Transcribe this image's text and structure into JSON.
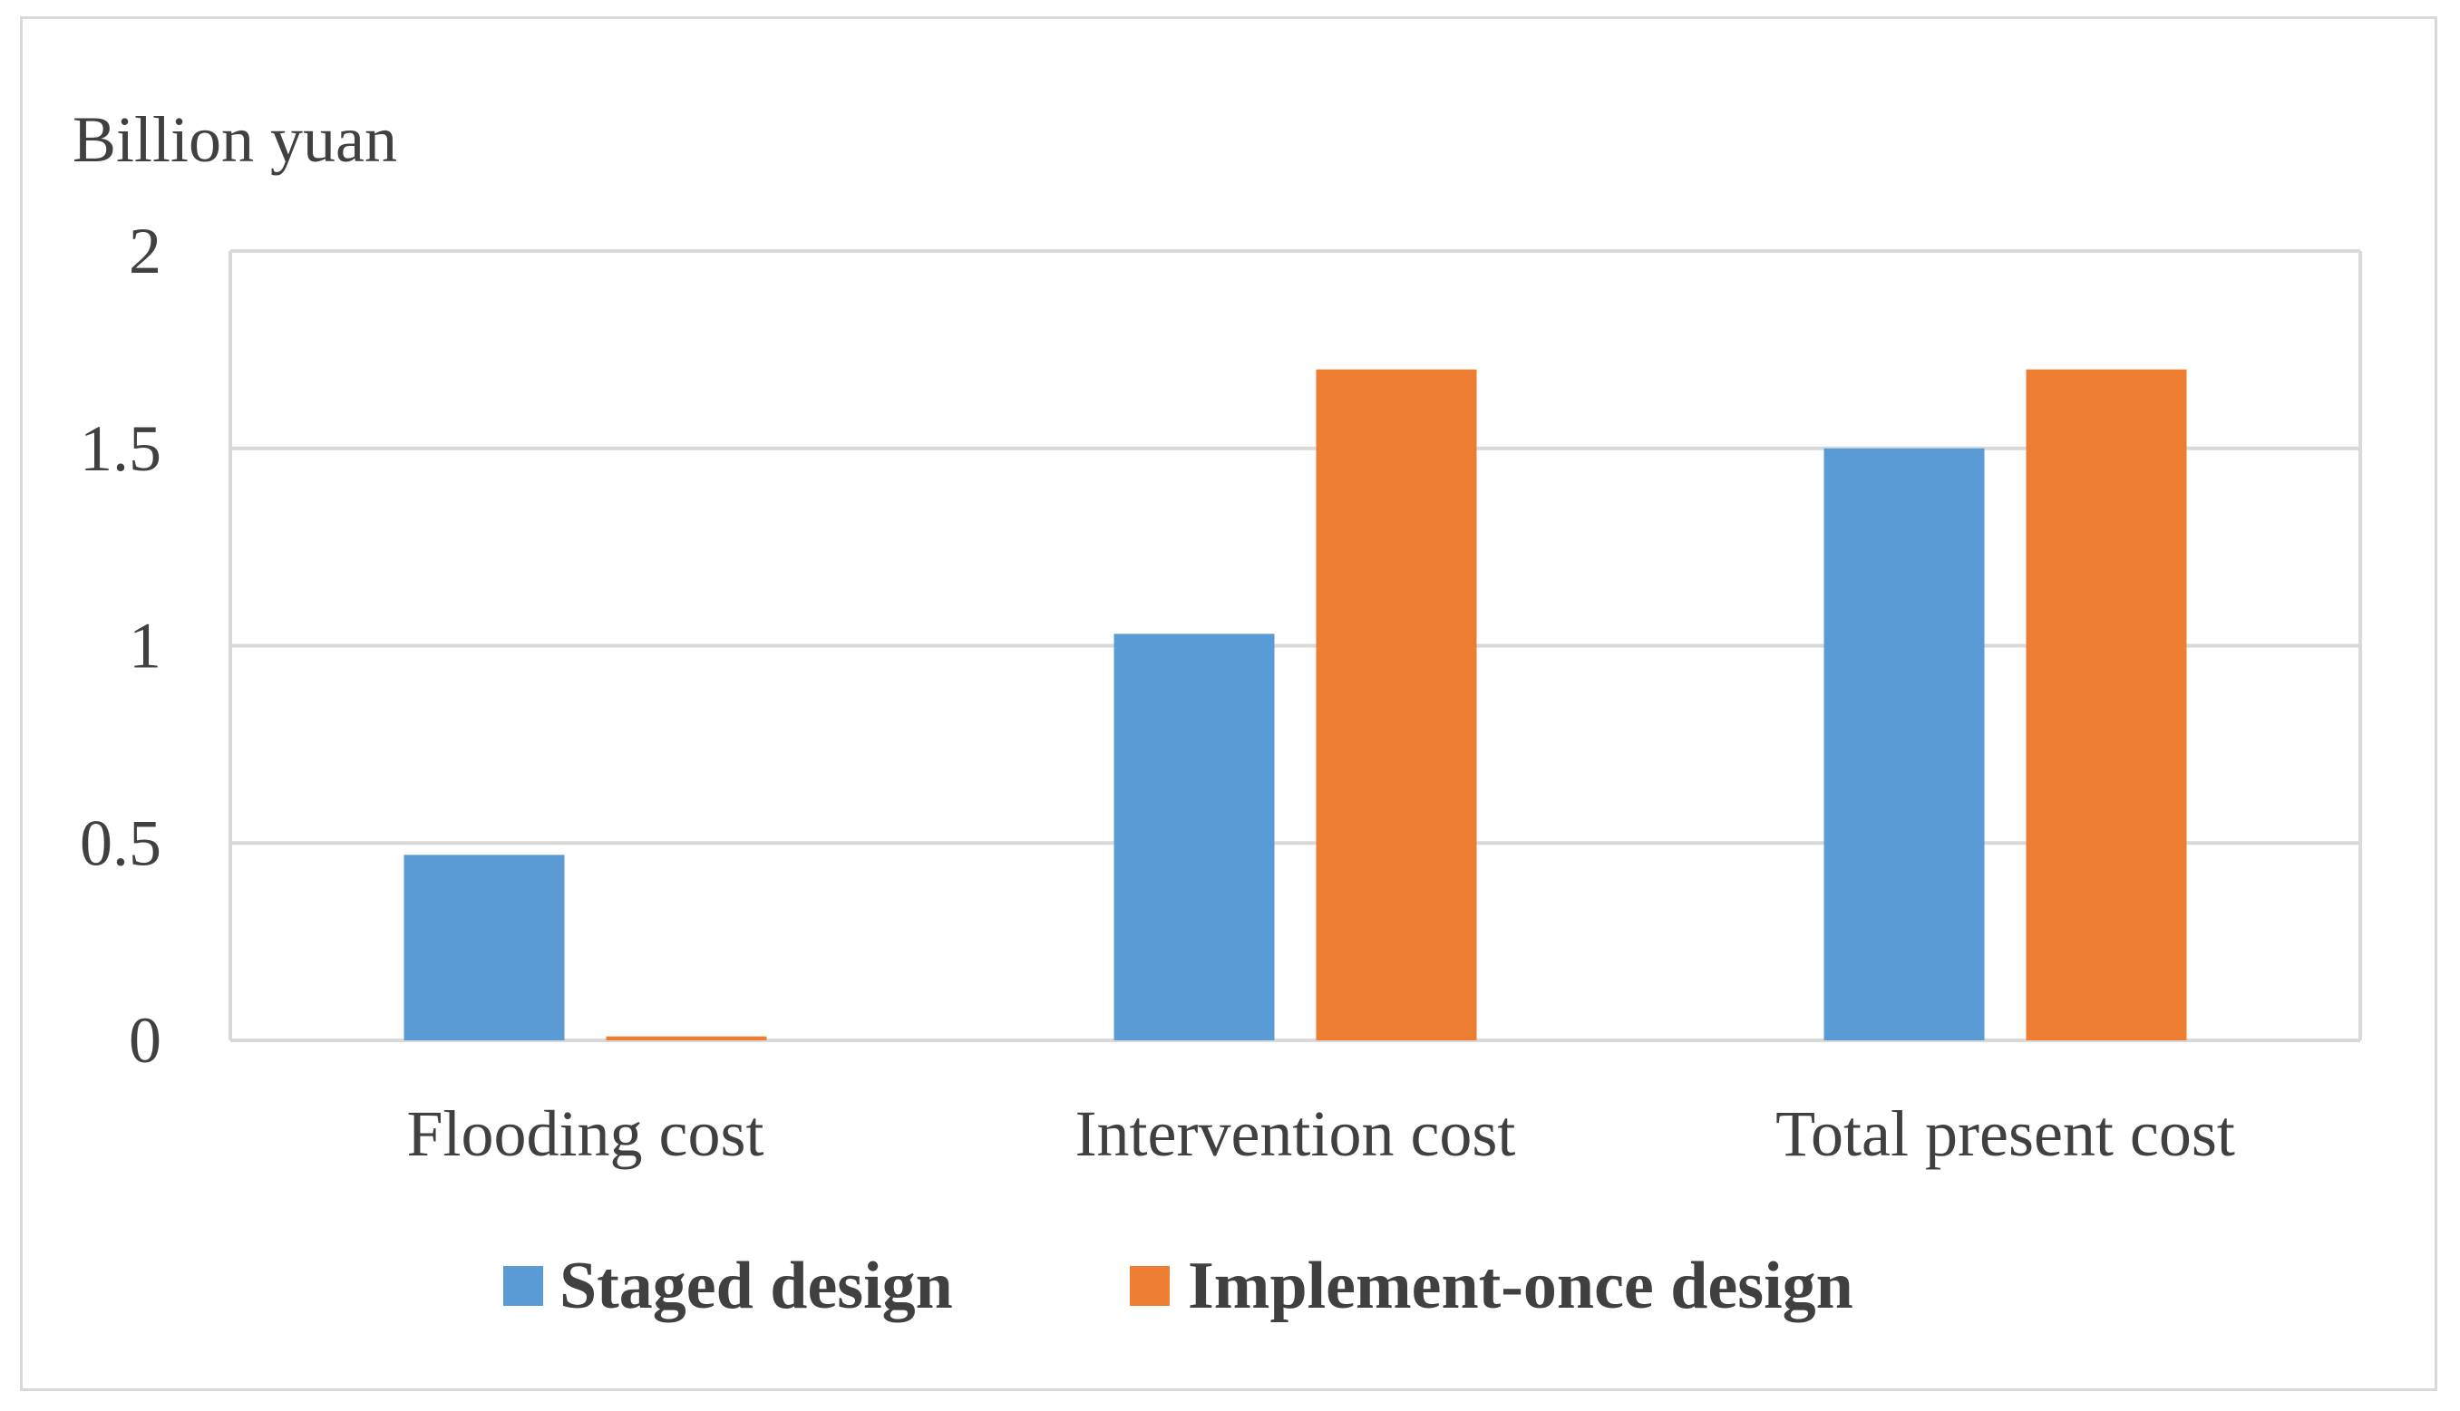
{
  "chart_data": {
    "type": "bar",
    "title": "",
    "xlabel": "",
    "ylabel": "Billion yuan",
    "ylim": [
      0,
      2
    ],
    "yticks": [
      "0",
      "0.5",
      "1",
      "1.5",
      "2"
    ],
    "ytick_values": [
      0,
      0.5,
      1,
      1.5,
      2
    ],
    "categories": [
      "Flooding cost",
      "Intervention cost",
      "Total present cost"
    ],
    "series": [
      {
        "name": "Staged design",
        "color": "#5b9bd5",
        "values": [
          0.47,
          1.03,
          1.5
        ]
      },
      {
        "name": "Implement-once design",
        "color": "#ed7d31",
        "values": [
          0.01,
          1.7,
          1.7
        ]
      }
    ],
    "grid": true,
    "legend_position": "bottom"
  }
}
